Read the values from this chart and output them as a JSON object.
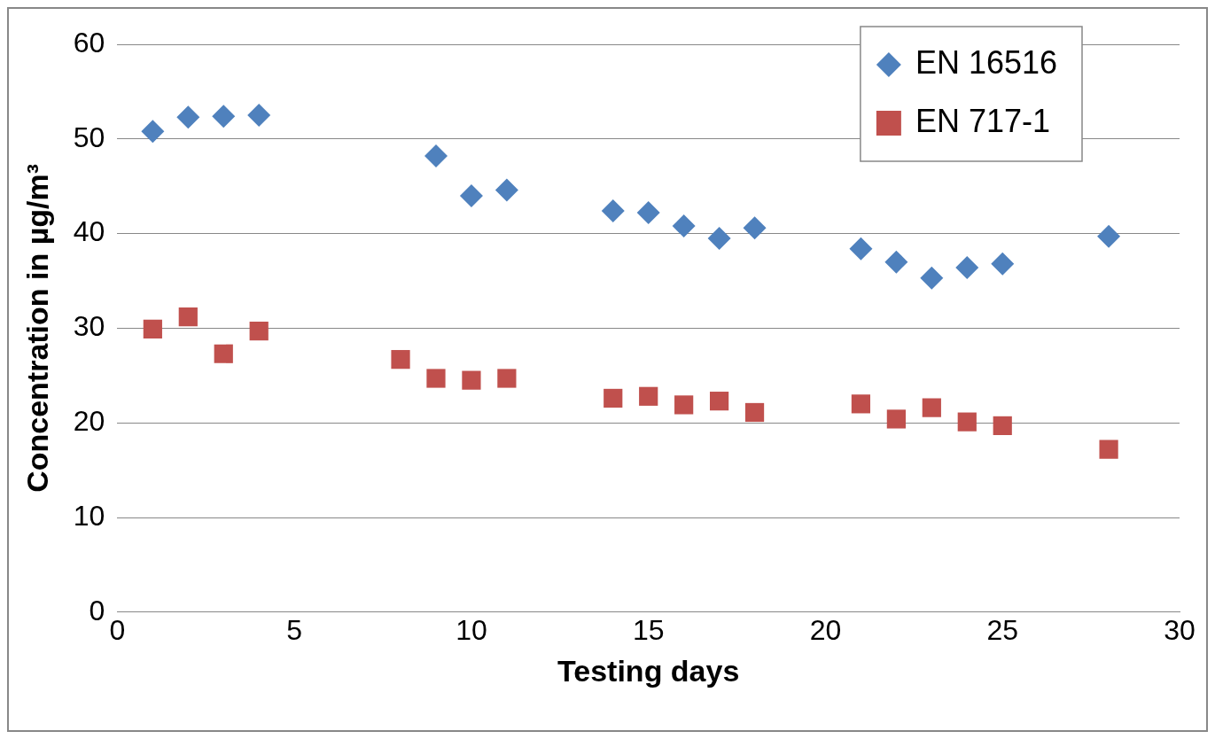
{
  "chart_data": {
    "type": "scatter",
    "xlabel": "Testing days",
    "ylabel": "Concentration in µg/m³",
    "xlim": [
      0,
      30
    ],
    "xticks": [
      0,
      5,
      10,
      15,
      20,
      25,
      30
    ],
    "ylim": [
      0,
      60
    ],
    "yticks": [
      0,
      10,
      20,
      30,
      40,
      50,
      60
    ],
    "grid": "y",
    "legend": "top right",
    "series": [
      {
        "name": "EN 16516",
        "color": "#4f81bd",
        "marker": "diamond",
        "x": [
          1,
          2,
          3,
          4,
          9,
          10,
          11,
          14,
          15,
          16,
          17,
          18,
          21,
          22,
          23,
          24,
          25,
          28
        ],
        "values": [
          50.8,
          52.3,
          52.4,
          52.5,
          48.2,
          44.0,
          44.6,
          42.4,
          42.2,
          40.8,
          39.5,
          40.6,
          38.4,
          37.0,
          35.3,
          36.4,
          36.8,
          39.7
        ]
      },
      {
        "name": "EN 717-1",
        "color": "#c0504d",
        "marker": "square",
        "x": [
          1,
          2,
          3,
          4,
          8,
          9,
          10,
          11,
          14,
          15,
          16,
          17,
          18,
          21,
          22,
          23,
          24,
          25,
          28
        ],
        "values": [
          29.9,
          31.2,
          27.3,
          29.7,
          26.7,
          24.7,
          24.5,
          24.7,
          22.6,
          22.8,
          21.9,
          22.3,
          21.1,
          22.0,
          20.4,
          21.6,
          20.1,
          19.7,
          17.2
        ]
      }
    ]
  }
}
